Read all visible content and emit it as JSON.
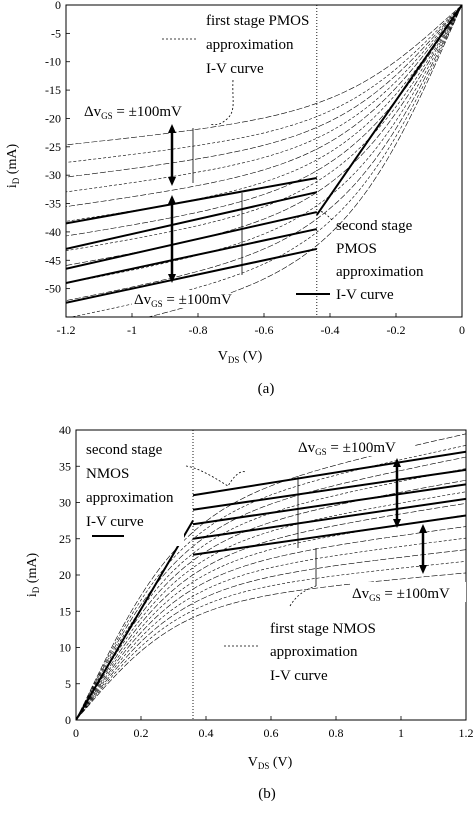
{
  "chart_data": [
    {
      "type": "line",
      "caption": "(a)",
      "xlim": [
        -1.2,
        0
      ],
      "ylim": [
        -55,
        0
      ],
      "x_ticks": [
        "-1.2",
        "-1",
        "-0.8",
        "-0.6",
        "-0.4",
        "-0.2",
        "0"
      ],
      "y_ticks": [
        "0",
        "-5",
        "-10",
        "-15",
        "-20",
        "-25",
        "-30",
        "-35",
        "-40",
        "-45",
        "-50"
      ],
      "xlabel": {
        "main": "V",
        "sub": "DS",
        "unit": " (V)"
      },
      "ylabel": {
        "main": "i",
        "sub": "D",
        "unit": " (mA)"
      },
      "knee_x": -0.44,
      "first_stage_curves": [
        {
          "sat": -17.5,
          "slope": 6.0
        },
        {
          "sat": -20.0,
          "slope": 6.5
        },
        {
          "sat": -22.0,
          "slope": 7.0
        },
        {
          "sat": -24.0,
          "slope": 7.5
        },
        {
          "sat": -26.0,
          "slope": 8.0
        },
        {
          "sat": -28.0,
          "slope": 8.5
        },
        {
          "sat": -30.0,
          "slope": 9.0
        },
        {
          "sat": -32.0,
          "slope": 9.5
        },
        {
          "sat": -34.0,
          "slope": 10.0
        },
        {
          "sat": -36.5,
          "slope": 10.5
        },
        {
          "sat": -39.0,
          "slope": 11.0
        },
        {
          "sat": -41.5,
          "slope": 11.5
        },
        {
          "sat": -44.0,
          "slope": 12.0
        }
      ],
      "second_stage_lines": [
        {
          "x": [
            -1.2,
            -0.44
          ],
          "y": [
            -38.5,
            -30.5
          ]
        },
        {
          "x": [
            -1.2,
            -0.44
          ],
          "y": [
            -43.0,
            -33.0
          ]
        },
        {
          "x": [
            -1.2,
            -0.44
          ],
          "y": [
            -46.5,
            -36.5
          ]
        },
        {
          "x": [
            -1.2,
            -0.44
          ],
          "y": [
            -49.0,
            -39.5
          ]
        },
        {
          "x": [
            -1.2,
            -0.44
          ],
          "y": [
            -52.5,
            -43.0
          ]
        }
      ],
      "triode_line": {
        "x": [
          -0.44,
          0
        ],
        "y": [
          -37.0,
          0
        ]
      },
      "annotations": {
        "first_stage": [
          "first stage PMOS",
          "approximation",
          "I-V curve"
        ],
        "second_stage": [
          "second stage",
          "PMOS",
          "approximation",
          "I-V curve"
        ],
        "delta_upper": {
          "main": "Δv",
          "sub": "GS",
          "rest": " = ±100mV"
        },
        "delta_lower": {
          "main": "Δv",
          "sub": "GS",
          "rest": " = ±100mV"
        }
      }
    },
    {
      "type": "line",
      "caption": "(b)",
      "xlim": [
        0,
        1.2
      ],
      "ylim": [
        0,
        40
      ],
      "x_ticks": [
        "0",
        "0.2",
        "0.4",
        "0.6",
        "0.8",
        "1",
        "1.2"
      ],
      "y_ticks": [
        "0",
        "5",
        "10",
        "15",
        "20",
        "25",
        "30",
        "35",
        "40"
      ],
      "xlabel": {
        "main": "V",
        "sub": "DS",
        "unit": " (V)"
      },
      "ylabel": {
        "main": "i",
        "sub": "D",
        "unit": " (mA)"
      },
      "knee_x": 0.36,
      "first_stage_curves": [
        {
          "sat": 15.5,
          "slope": 4.0
        },
        {
          "sat": 16.5,
          "slope": 4.5
        },
        {
          "sat": 17.5,
          "slope": 5.0
        },
        {
          "sat": 18.5,
          "slope": 5.5
        },
        {
          "sat": 19.5,
          "slope": 6.0
        },
        {
          "sat": 20.5,
          "slope": 6.5
        },
        {
          "sat": 21.5,
          "slope": 7.0
        },
        {
          "sat": 22.5,
          "slope": 7.5
        },
        {
          "sat": 23.5,
          "slope": 8.0
        },
        {
          "sat": 24.5,
          "slope": 8.5
        },
        {
          "sat": 25.5,
          "slope": 9.0
        },
        {
          "sat": 26.5,
          "slope": 9.5
        },
        {
          "sat": 27.5,
          "slope": 10.0
        }
      ],
      "second_stage_lines": [
        {
          "x": [
            0.36,
            1.2
          ],
          "y": [
            31.0,
            37.0
          ]
        },
        {
          "x": [
            0.36,
            1.2
          ],
          "y": [
            29.0,
            34.5
          ]
        },
        {
          "x": [
            0.36,
            1.2
          ],
          "y": [
            27.0,
            32.5
          ]
        },
        {
          "x": [
            0.36,
            1.2
          ],
          "y": [
            25.0,
            30.5
          ]
        },
        {
          "x": [
            0.36,
            1.2
          ],
          "y": [
            22.8,
            28.2
          ]
        }
      ],
      "triode_line": {
        "x": [
          0,
          0.36
        ],
        "y": [
          0,
          27.5
        ]
      },
      "annotations": {
        "first_stage": [
          "first stage NMOS",
          "approximation",
          "I-V curve"
        ],
        "second_stage": [
          "second stage",
          "NMOS",
          "approximation",
          "I-V curve"
        ],
        "delta_upper": {
          "main": "Δv",
          "sub": "GS",
          "rest": " = ±100mV"
        },
        "delta_lower": {
          "main": "Δv",
          "sub": "GS",
          "rest": " = ±100mV"
        }
      }
    }
  ]
}
